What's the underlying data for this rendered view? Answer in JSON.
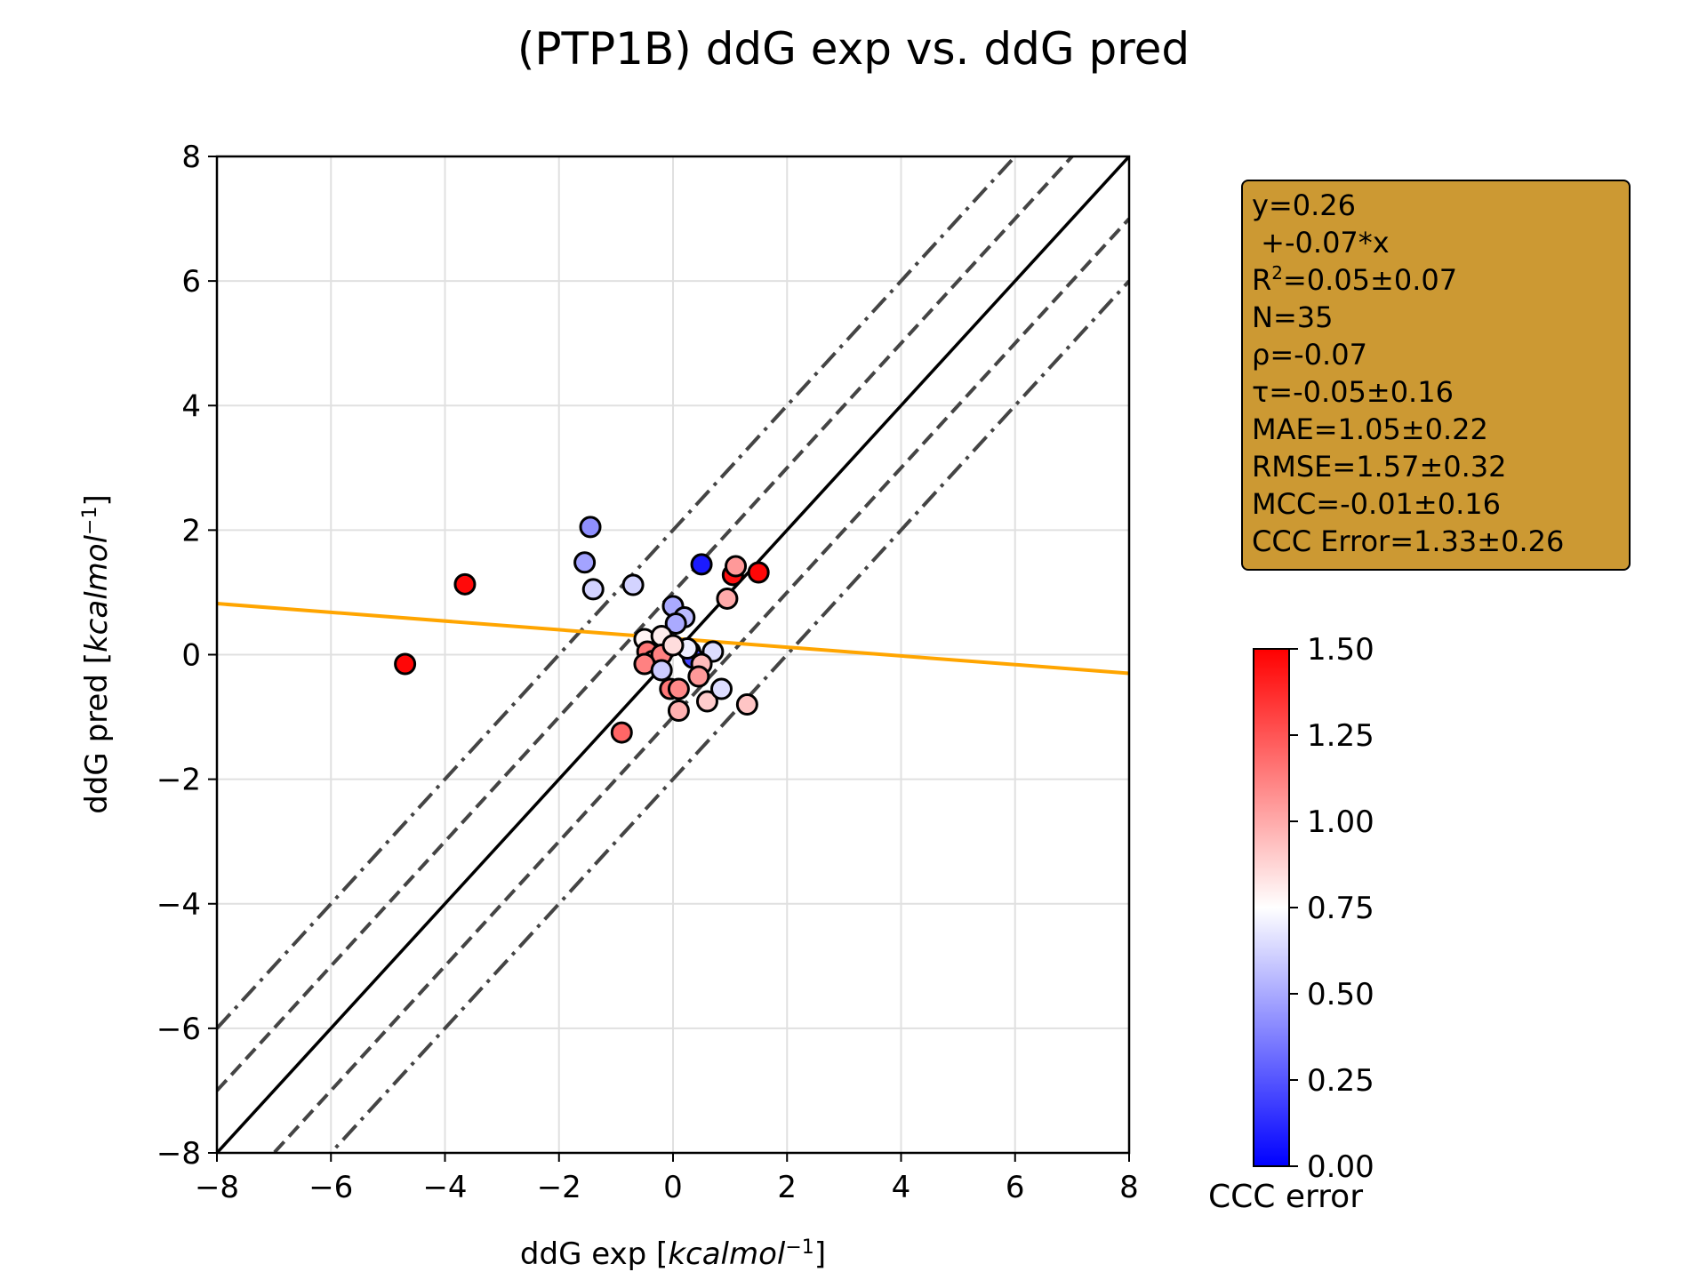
{
  "chart_data": {
    "type": "scatter",
    "title": "(PTP1B) ddG exp vs. ddG pred",
    "xlabel": "ddG exp [",
    "ylabel": "ddG pred [",
    "unit_italic": "kcalmol",
    "unit_exponent": "−1",
    "unit_close": "]",
    "xlim": [
      -8,
      8
    ],
    "ylim": [
      -8,
      8
    ],
    "ticks": [
      -8,
      -6,
      -4,
      -2,
      0,
      2,
      4,
      6,
      8
    ],
    "tick_labels": [
      "−8",
      "−6",
      "−4",
      "−2",
      "0",
      "2",
      "4",
      "6",
      "8"
    ],
    "grid": true,
    "reference_lines": [
      {
        "offset": 0,
        "style": "solid",
        "color": "#000000"
      },
      {
        "offset": 1,
        "style": "dashed",
        "color": "#444444"
      },
      {
        "offset": -1,
        "style": "dashed",
        "color": "#444444"
      },
      {
        "offset": 2,
        "style": "dashdot",
        "color": "#444444"
      },
      {
        "offset": -2,
        "style": "dashdot",
        "color": "#444444"
      }
    ],
    "fit_line": {
      "intercept": 0.26,
      "slope": -0.07,
      "color": "#ffa500"
    },
    "points": [
      {
        "x": -4.7,
        "y": -0.15,
        "err": 1.48
      },
      {
        "x": -3.65,
        "y": 1.13,
        "err": 1.47
      },
      {
        "x": -1.45,
        "y": 2.05,
        "err": 0.42
      },
      {
        "x": -1.55,
        "y": 1.48,
        "err": 0.48
      },
      {
        "x": -1.4,
        "y": 1.05,
        "err": 0.62
      },
      {
        "x": -0.7,
        "y": 1.12,
        "err": 0.62
      },
      {
        "x": 0.5,
        "y": 1.45,
        "err": 0.08
      },
      {
        "x": 0.0,
        "y": 0.78,
        "err": 0.5
      },
      {
        "x": 0.2,
        "y": 0.6,
        "err": 0.55
      },
      {
        "x": 0.05,
        "y": 0.5,
        "err": 0.5
      },
      {
        "x": 1.05,
        "y": 1.28,
        "err": 1.45
      },
      {
        "x": 1.1,
        "y": 1.42,
        "err": 1.05
      },
      {
        "x": 1.5,
        "y": 1.32,
        "err": 1.48
      },
      {
        "x": 0.95,
        "y": 0.9,
        "err": 1.0
      },
      {
        "x": -0.5,
        "y": 0.25,
        "err": 0.78
      },
      {
        "x": -0.2,
        "y": 0.3,
        "err": 0.8
      },
      {
        "x": -0.45,
        "y": 0.05,
        "err": 1.15
      },
      {
        "x": -0.35,
        "y": -0.1,
        "err": 1.1
      },
      {
        "x": -0.2,
        "y": 0.0,
        "err": 1.12
      },
      {
        "x": -0.5,
        "y": -0.15,
        "err": 1.12
      },
      {
        "x": 0.3,
        "y": 0.05,
        "err": 0.15
      },
      {
        "x": 0.35,
        "y": -0.05,
        "err": 0.2
      },
      {
        "x": 0.7,
        "y": 0.05,
        "err": 0.65
      },
      {
        "x": -0.2,
        "y": -0.25,
        "err": 0.6
      },
      {
        "x": 0.5,
        "y": -0.15,
        "err": 0.95
      },
      {
        "x": 0.45,
        "y": -0.35,
        "err": 1.05
      },
      {
        "x": -0.05,
        "y": -0.55,
        "err": 1.15
      },
      {
        "x": 0.1,
        "y": -0.55,
        "err": 1.1
      },
      {
        "x": 0.6,
        "y": -0.75,
        "err": 0.9
      },
      {
        "x": 0.85,
        "y": -0.55,
        "err": 0.65
      },
      {
        "x": 1.3,
        "y": -0.8,
        "err": 0.92
      },
      {
        "x": 0.1,
        "y": -0.9,
        "err": 0.98
      },
      {
        "x": -0.9,
        "y": -1.25,
        "err": 1.2
      },
      {
        "x": 0.25,
        "y": 0.1,
        "err": 0.7
      },
      {
        "x": 0.0,
        "y": 0.15,
        "err": 0.85
      }
    ],
    "colorbar": {
      "label": "CCC error",
      "range": [
        0,
        1.5
      ],
      "tick_values": [
        0,
        0.25,
        0.5,
        0.75,
        1.0,
        1.25,
        1.5
      ],
      "tick_labels": [
        "0.00",
        "0.25",
        "0.50",
        "0.75",
        "1.00",
        "1.25",
        "1.50"
      ],
      "colors": [
        "#0000ff",
        "#ffffff",
        "#ff0000"
      ]
    },
    "stats": {
      "line1": "y=0.26",
      "line2": " +-0.07*x",
      "r2_prefix": "R",
      "r2_sup": "2",
      "r2_suffix": "=0.05±0.07",
      "n": "N=35",
      "rho": "ρ=-0.07",
      "tau": "τ=-0.05±0.16",
      "mae": "MAE=1.05±0.22",
      "rmse": "RMSE=1.57±0.32",
      "mcc": "MCC=-0.01±0.16",
      "ccc": "CCC Error=1.33±0.26"
    }
  }
}
